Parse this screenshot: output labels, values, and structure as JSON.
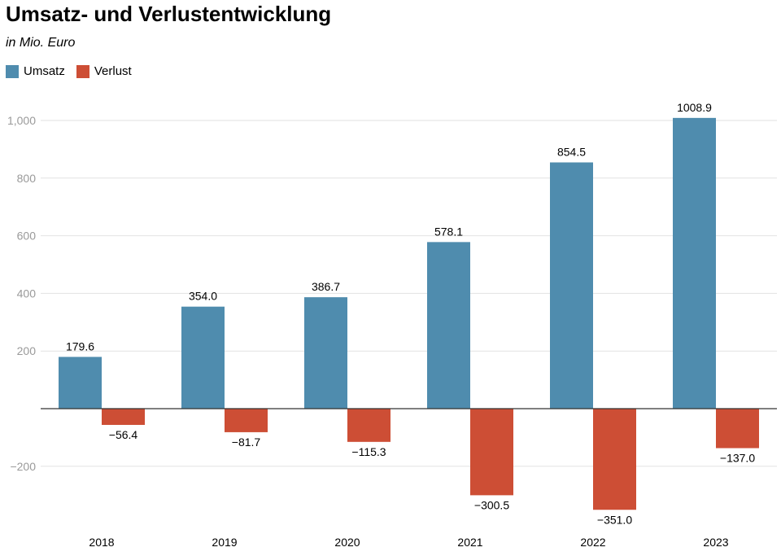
{
  "title": "Umsatz- und Verlustentwicklung",
  "subtitle": "in Mio. Euro",
  "chart_data": {
    "type": "bar",
    "title": "Umsatz- und Verlustentwicklung",
    "subtitle": "in Mio. Euro",
    "categories": [
      "2018",
      "2019",
      "2020",
      "2021",
      "2022",
      "2023"
    ],
    "series": [
      {
        "name": "Umsatz",
        "color": "#4f8cae",
        "values": [
          179.6,
          354.0,
          386.7,
          578.1,
          854.5,
          1008.9
        ],
        "labels": [
          "179.6",
          "354.0",
          "386.7",
          "578.1",
          "854.5",
          "1008.9"
        ]
      },
      {
        "name": "Verlust",
        "color": "#cd4e35",
        "values": [
          -56.4,
          -81.7,
          -115.3,
          -300.5,
          -351.0,
          -137.0
        ],
        "labels": [
          "−56.4",
          "−81.7",
          "−115.3",
          "−300.5",
          "−351.0",
          "−137.0"
        ]
      }
    ],
    "yticks": [
      1000,
      800,
      600,
      400,
      200,
      -200
    ],
    "ytick_labels": [
      "1,000",
      "800",
      "600",
      "400",
      "200",
      "−200"
    ],
    "ylim": [
      -380,
      1100
    ],
    "grid": true,
    "legend_position": "top-left"
  }
}
